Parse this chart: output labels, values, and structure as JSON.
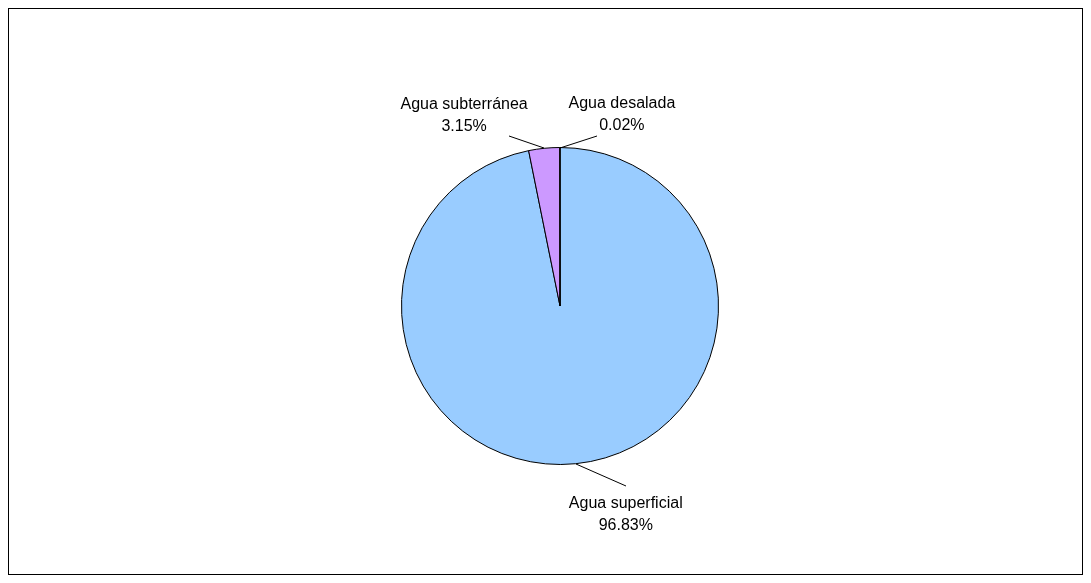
{
  "chart_data": {
    "type": "pie",
    "categories": [
      "Agua superficial",
      "Agua subterránea",
      "Agua desalada"
    ],
    "values": [
      96.83,
      3.15,
      0.02
    ],
    "value_labels": [
      "96.83%",
      "3.15%",
      "0.02%"
    ],
    "colors": [
      "#99ccff",
      "#cc99ff",
      "#ffff99"
    ],
    "legend": false
  }
}
